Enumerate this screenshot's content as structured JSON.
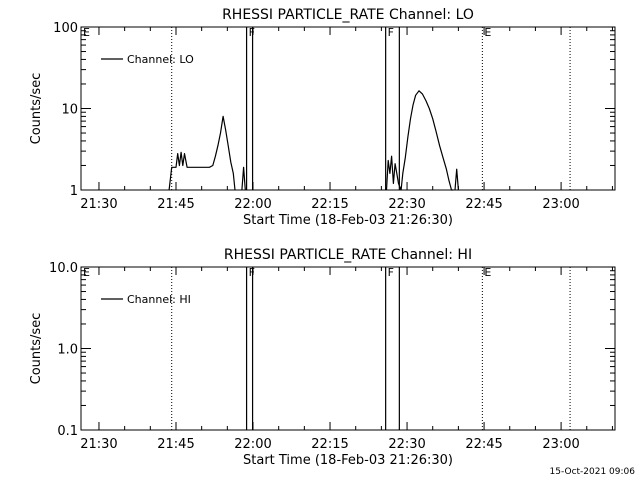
{
  "footer": {
    "timestamp": "15-Oct-2021 09:06"
  },
  "chart_data": [
    {
      "type": "line",
      "title": "RHESSI PARTICLE_RATE Channel: LO",
      "xlabel": "Start Time (18-Feb-03 21:26:30)",
      "ylabel": "Counts/sec",
      "xlim": [
        "21:26:30",
        "23:10:30"
      ],
      "ylim": [
        1,
        100
      ],
      "yscale": "log",
      "grid": false,
      "legend": {
        "position": "top-left",
        "entries": [
          {
            "label": "Channel: LO",
            "color": "#000000"
          }
        ]
      },
      "xticks": [
        "21:30",
        "21:45",
        "22:00",
        "22:15",
        "22:30",
        "22:45",
        "23:00"
      ],
      "yticks": [
        "1",
        "10",
        "100"
      ],
      "markers": [
        {
          "label": "E",
          "time": "21:26:30",
          "style": "dotted"
        },
        {
          "label": "",
          "time": "21:44:10",
          "style": "dotted"
        },
        {
          "label": "F",
          "time": "21:58:45",
          "style": "solid"
        },
        {
          "label": "",
          "time": "21:59:55",
          "style": "solid"
        },
        {
          "label": "F",
          "time": "22:25:50",
          "style": "solid"
        },
        {
          "label": "",
          "time": "22:28:30",
          "style": "solid"
        },
        {
          "label": "E",
          "time": "22:44:40",
          "style": "dotted"
        },
        {
          "label": "",
          "time": "23:01:45",
          "style": "dotted"
        }
      ],
      "series": [
        {
          "color": "#000000",
          "segments": [
            {
              "x": [
                "21:43:40",
                "21:44:10",
                "21:45:00",
                "21:45:20",
                "21:45:40",
                "21:46:00",
                "21:46:20",
                "21:46:40",
                "21:47:10",
                "21:48:30",
                "21:51:30",
                "21:52:10",
                "21:52:40",
                "21:53:10",
                "21:53:40",
                "21:54:10",
                "21:54:40",
                "21:55:10",
                "21:55:40",
                "21:56:10",
                "21:56:30"
              ],
              "y": [
                1,
                1.9,
                1.9,
                2.8,
                2.0,
                2.9,
                2.0,
                2.8,
                1.9,
                1.9,
                1.9,
                2.0,
                2.6,
                3.5,
                5.0,
                8.0,
                5.5,
                3.5,
                2.2,
                1.6,
                1.0
              ]
            },
            {
              "x": [
                "21:57:50",
                "21:58:10",
                "21:58:30"
              ],
              "y": [
                1,
                1.9,
                1
              ]
            },
            {
              "x": [
                "22:26:00",
                "22:26:20",
                "22:26:40",
                "22:27:00",
                "22:27:20",
                "22:27:40",
                "22:28:00",
                "22:28:20",
                "22:28:50",
                "22:29:10",
                "22:29:40",
                "22:30:10",
                "22:30:40",
                "22:31:10",
                "22:31:40",
                "22:32:20",
                "22:33:00",
                "22:33:40",
                "22:34:20",
                "22:35:00",
                "22:35:40",
                "22:36:20",
                "22:37:00",
                "22:37:40",
                "22:38:10",
                "22:38:40",
                "22:39:00"
              ],
              "y": [
                1,
                2.3,
                1.6,
                2.6,
                1.2,
                2.1,
                1.6,
                1.2,
                1.0,
                1.6,
                2.5,
                4.5,
                7.5,
                11.0,
                14.5,
                16.5,
                15.0,
                12.5,
                10.0,
                7.5,
                5.2,
                3.5,
                2.5,
                1.8,
                1.3,
                1.0,
                1.0
              ]
            },
            {
              "x": [
                "22:39:20",
                "22:39:40",
                "22:40:00"
              ],
              "y": [
                1,
                1.8,
                1
              ]
            }
          ]
        }
      ]
    },
    {
      "type": "line",
      "title": "RHESSI PARTICLE_RATE Channel: HI",
      "xlabel": "Start Time (18-Feb-03 21:26:30)",
      "ylabel": "Counts/sec",
      "xlim": [
        "21:26:30",
        "23:10:30"
      ],
      "ylim": [
        0.1,
        10
      ],
      "yscale": "log",
      "grid": false,
      "legend": {
        "position": "top-left",
        "entries": [
          {
            "label": "Channel: HI",
            "color": "#000000"
          }
        ]
      },
      "xticks": [
        "21:30",
        "21:45",
        "22:00",
        "22:15",
        "22:30",
        "22:45",
        "23:00"
      ],
      "yticks": [
        "0.1",
        "1.0",
        "10.0"
      ],
      "markers": [
        {
          "label": "E",
          "time": "21:26:30",
          "style": "dotted"
        },
        {
          "label": "",
          "time": "21:44:10",
          "style": "dotted"
        },
        {
          "label": "F",
          "time": "21:58:45",
          "style": "solid"
        },
        {
          "label": "",
          "time": "21:59:55",
          "style": "solid"
        },
        {
          "label": "F",
          "time": "22:25:50",
          "style": "solid"
        },
        {
          "label": "",
          "time": "22:28:30",
          "style": "solid"
        },
        {
          "label": "E",
          "time": "22:44:40",
          "style": "dotted"
        },
        {
          "label": "",
          "time": "23:01:45",
          "style": "dotted"
        }
      ],
      "series": [
        {
          "color": "#000000",
          "segments": []
        }
      ]
    }
  ]
}
